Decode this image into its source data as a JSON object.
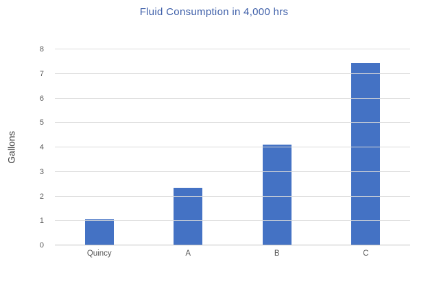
{
  "chart": {
    "title": "Fluid Consumption in 4,000 hrs",
    "y_axis_title": "Gallons"
  },
  "chart_data": {
    "type": "bar",
    "title": "Fluid Consumption in 4,000 hrs",
    "categories": [
      "Quincy",
      "A",
      "B",
      "C"
    ],
    "values": [
      1.05,
      2.35,
      4.1,
      7.45
    ],
    "xlabel": "",
    "ylabel": "Gallons",
    "ylim": [
      0,
      8
    ],
    "ytick_step": 1,
    "grid": true,
    "legend": false,
    "colors": {
      "bar": "#4472c4",
      "title_text": "#3d5ea8",
      "axis_text": "#595959",
      "gridline": "#d9d9d9"
    }
  }
}
